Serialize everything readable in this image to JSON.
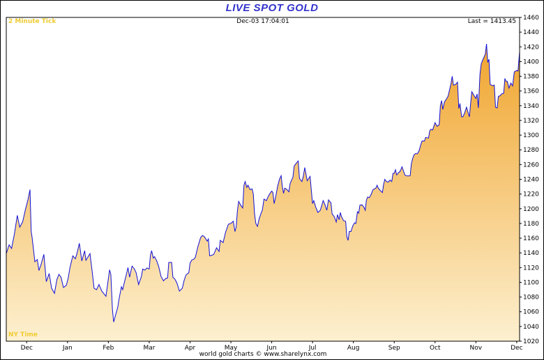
{
  "title": "LIVE SPOT GOLD",
  "header": {
    "tick_label": "2 Minute Tick",
    "timestamp": "Dec-03 17:04:01",
    "last_label": "Last = 1413.45"
  },
  "footer": {
    "ny_time": "NY Time",
    "credit": "world gold charts © www.sharelynx.com"
  },
  "colors": {
    "title": "#3333cc",
    "line": "#1010d8",
    "fill_top": "#ef9e20",
    "fill_bottom": "#fdf0d0",
    "annotation_yellow": "#efcb32",
    "axis": "#000000"
  },
  "chart_data": {
    "type": "line",
    "title": "LIVE SPOT GOLD",
    "series_name": "Spot Gold (2 Minute Tick)",
    "last": 1413.45,
    "ylim": [
      1020,
      1460
    ],
    "y_step": 20,
    "y_tick_labels": [
      1460,
      1440,
      1420,
      1400,
      1380,
      1360,
      1340,
      1320,
      1300,
      1280,
      1260,
      1240,
      1220,
      1200,
      1180,
      1160,
      1140,
      1120,
      1100,
      1080,
      1060,
      1040,
      1020
    ],
    "x_tick_labels": [
      "Dec",
      "Jan",
      "Feb",
      "Mar",
      "Apr",
      "May",
      "Jun",
      "Jul",
      "Aug",
      "Sep",
      "Oct",
      "Nov",
      "Dec"
    ],
    "x_unit": "months_since_first_Dec_1",
    "x_range": [
      -0.5,
      12.07
    ],
    "grid": false,
    "legend": "none",
    "points": [
      [
        -0.5,
        1139
      ],
      [
        -0.43,
        1151
      ],
      [
        -0.37,
        1146
      ],
      [
        -0.3,
        1166
      ],
      [
        -0.23,
        1191
      ],
      [
        -0.17,
        1175
      ],
      [
        -0.1,
        1182
      ],
      [
        -0.03,
        1199
      ],
      [
        0.03,
        1212
      ],
      [
        0.08,
        1226
      ],
      [
        0.11,
        1169
      ],
      [
        0.13,
        1162
      ],
      [
        0.2,
        1128
      ],
      [
        0.26,
        1131
      ],
      [
        0.3,
        1116
      ],
      [
        0.35,
        1124
      ],
      [
        0.42,
        1138
      ],
      [
        0.48,
        1101
      ],
      [
        0.55,
        1112
      ],
      [
        0.61,
        1092
      ],
      [
        0.68,
        1085
      ],
      [
        0.74,
        1104
      ],
      [
        0.84,
        1107
      ],
      [
        0.9,
        1093
      ],
      [
        0.97,
        1096
      ],
      [
        1.06,
        1120
      ],
      [
        1.13,
        1136
      ],
      [
        1.19,
        1132
      ],
      [
        1.23,
        1139
      ],
      [
        1.29,
        1153
      ],
      [
        1.35,
        1129
      ],
      [
        1.42,
        1143
      ],
      [
        1.45,
        1130
      ],
      [
        1.55,
        1139
      ],
      [
        1.61,
        1112
      ],
      [
        1.65,
        1092
      ],
      [
        1.71,
        1090
      ],
      [
        1.77,
        1097
      ],
      [
        1.84,
        1088
      ],
      [
        1.9,
        1084
      ],
      [
        1.94,
        1081
      ],
      [
        2.0,
        1105
      ],
      [
        2.03,
        1117
      ],
      [
        2.06,
        1111
      ],
      [
        2.1,
        1063
      ],
      [
        2.13,
        1046
      ],
      [
        2.16,
        1052
      ],
      [
        2.23,
        1066
      ],
      [
        2.26,
        1077
      ],
      [
        2.32,
        1094
      ],
      [
        2.35,
        1090
      ],
      [
        2.48,
        1120
      ],
      [
        2.52,
        1107
      ],
      [
        2.58,
        1122
      ],
      [
        2.68,
        1113
      ],
      [
        2.74,
        1097
      ],
      [
        2.81,
        1108
      ],
      [
        2.84,
        1118
      ],
      [
        3.0,
        1118
      ],
      [
        3.03,
        1137
      ],
      [
        3.06,
        1143
      ],
      [
        3.1,
        1133
      ],
      [
        3.13,
        1135
      ],
      [
        3.23,
        1122
      ],
      [
        3.29,
        1108
      ],
      [
        3.35,
        1102
      ],
      [
        3.45,
        1106
      ],
      [
        3.48,
        1127
      ],
      [
        3.55,
        1127
      ],
      [
        3.58,
        1107
      ],
      [
        3.68,
        1099
      ],
      [
        3.74,
        1088
      ],
      [
        3.81,
        1092
      ],
      [
        3.9,
        1110
      ],
      [
        3.97,
        1113
      ],
      [
        4.0,
        1126
      ],
      [
        4.13,
        1134
      ],
      [
        4.19,
        1148
      ],
      [
        4.26,
        1161
      ],
      [
        4.35,
        1162
      ],
      [
        4.42,
        1156
      ],
      [
        4.45,
        1159
      ],
      [
        4.48,
        1136
      ],
      [
        4.58,
        1138
      ],
      [
        4.65,
        1147
      ],
      [
        4.71,
        1142
      ],
      [
        4.74,
        1157
      ],
      [
        4.81,
        1154
      ],
      [
        4.87,
        1168
      ],
      [
        4.94,
        1179
      ],
      [
        5.06,
        1183
      ],
      [
        5.1,
        1169
      ],
      [
        5.13,
        1175
      ],
      [
        5.16,
        1197
      ],
      [
        5.19,
        1210
      ],
      [
        5.29,
        1201
      ],
      [
        5.32,
        1232
      ],
      [
        5.35,
        1237
      ],
      [
        5.39,
        1229
      ],
      [
        5.42,
        1232
      ],
      [
        5.52,
        1227
      ],
      [
        5.55,
        1220
      ],
      [
        5.58,
        1193
      ],
      [
        5.61,
        1180
      ],
      [
        5.65,
        1176
      ],
      [
        5.74,
        1194
      ],
      [
        5.77,
        1198
      ],
      [
        5.81,
        1213
      ],
      [
        5.87,
        1211
      ],
      [
        5.9,
        1215
      ],
      [
        6.0,
        1224
      ],
      [
        6.03,
        1222
      ],
      [
        6.06,
        1207
      ],
      [
        6.1,
        1217
      ],
      [
        6.19,
        1240
      ],
      [
        6.23,
        1245
      ],
      [
        6.26,
        1230
      ],
      [
        6.29,
        1221
      ],
      [
        6.32,
        1228
      ],
      [
        6.42,
        1223
      ],
      [
        6.45,
        1234
      ],
      [
        6.52,
        1243
      ],
      [
        6.55,
        1258
      ],
      [
        6.65,
        1265
      ],
      [
        6.68,
        1241
      ],
      [
        6.74,
        1237
      ],
      [
        6.77,
        1243
      ],
      [
        6.81,
        1256
      ],
      [
        6.87,
        1238
      ],
      [
        6.94,
        1244
      ],
      [
        7.0,
        1207
      ],
      [
        7.03,
        1211
      ],
      [
        7.13,
        1195
      ],
      [
        7.19,
        1198
      ],
      [
        7.26,
        1211
      ],
      [
        7.35,
        1198
      ],
      [
        7.39,
        1212
      ],
      [
        7.45,
        1208
      ],
      [
        7.48,
        1193
      ],
      [
        7.58,
        1182
      ],
      [
        7.61,
        1192
      ],
      [
        7.65,
        1185
      ],
      [
        7.68,
        1195
      ],
      [
        7.71,
        1189
      ],
      [
        7.81,
        1183
      ],
      [
        7.84,
        1162
      ],
      [
        7.87,
        1157
      ],
      [
        7.9,
        1169
      ],
      [
        7.94,
        1169
      ],
      [
        8.03,
        1181
      ],
      [
        8.06,
        1180
      ],
      [
        8.1,
        1196
      ],
      [
        8.13,
        1194
      ],
      [
        8.16,
        1205
      ],
      [
        8.26,
        1202
      ],
      [
        8.29,
        1198
      ],
      [
        8.32,
        1212
      ],
      [
        8.35,
        1216
      ],
      [
        8.39,
        1215
      ],
      [
        8.48,
        1226
      ],
      [
        8.55,
        1228
      ],
      [
        8.58,
        1232
      ],
      [
        8.61,
        1228
      ],
      [
        8.71,
        1222
      ],
      [
        8.74,
        1233
      ],
      [
        8.77,
        1240
      ],
      [
        8.81,
        1237
      ],
      [
        8.94,
        1237
      ],
      [
        8.97,
        1248
      ],
      [
        9.0,
        1248
      ],
      [
        9.03,
        1253
      ],
      [
        9.06,
        1246
      ],
      [
        9.19,
        1257
      ],
      [
        9.26,
        1246
      ],
      [
        9.29,
        1245
      ],
      [
        9.39,
        1245
      ],
      [
        9.42,
        1261
      ],
      [
        9.45,
        1268
      ],
      [
        9.48,
        1273
      ],
      [
        9.52,
        1275
      ],
      [
        9.61,
        1279
      ],
      [
        9.65,
        1287
      ],
      [
        9.68,
        1292
      ],
      [
        9.74,
        1292
      ],
      [
        9.77,
        1297
      ],
      [
        9.84,
        1296
      ],
      [
        9.87,
        1306
      ],
      [
        9.9,
        1308
      ],
      [
        9.94,
        1307
      ],
      [
        10.0,
        1317
      ],
      [
        10.1,
        1314
      ],
      [
        10.13,
        1340
      ],
      [
        10.16,
        1347
      ],
      [
        10.19,
        1335
      ],
      [
        10.23,
        1345
      ],
      [
        10.32,
        1353
      ],
      [
        10.39,
        1370
      ],
      [
        10.42,
        1380
      ],
      [
        10.45,
        1368
      ],
      [
        10.55,
        1372
      ],
      [
        10.58,
        1336
      ],
      [
        10.61,
        1343
      ],
      [
        10.65,
        1325
      ],
      [
        10.68,
        1325
      ],
      [
        10.77,
        1338
      ],
      [
        10.84,
        1325
      ],
      [
        10.87,
        1342
      ],
      [
        10.9,
        1359
      ],
      [
        11.0,
        1350
      ],
      [
        11.03,
        1356
      ],
      [
        11.06,
        1337
      ],
      [
        11.1,
        1383
      ],
      [
        11.13,
        1397
      ],
      [
        11.23,
        1410
      ],
      [
        11.26,
        1424
      ],
      [
        11.29,
        1399
      ],
      [
        11.32,
        1403
      ],
      [
        11.35,
        1369
      ],
      [
        11.45,
        1368
      ],
      [
        11.48,
        1338
      ],
      [
        11.52,
        1337
      ],
      [
        11.55,
        1353
      ],
      [
        11.58,
        1353
      ],
      [
        11.68,
        1357
      ],
      [
        11.71,
        1377
      ],
      [
        11.74,
        1373
      ],
      [
        11.77,
        1373
      ],
      [
        11.81,
        1364
      ],
      [
        11.9,
        1367
      ],
      [
        11.94,
        1386
      ],
      [
        12.0,
        1388
      ],
      [
        12.03,
        1387
      ],
      [
        12.07,
        1413.45
      ]
    ]
  }
}
